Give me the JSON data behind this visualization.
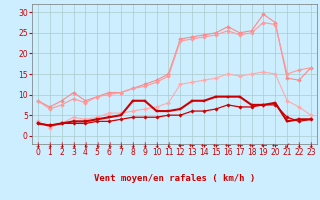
{
  "x": [
    0,
    1,
    2,
    3,
    4,
    5,
    6,
    7,
    8,
    9,
    10,
    11,
    12,
    13,
    14,
    15,
    16,
    17,
    18,
    19,
    20,
    21,
    22,
    23
  ],
  "series": [
    {
      "color": "#ff8888",
      "linewidth": 0.8,
      "marker": "D",
      "markersize": 2.0,
      "values": [
        8.5,
        7.0,
        8.5,
        10.5,
        8.5,
        9.5,
        10.5,
        10.5,
        11.5,
        12.5,
        13.5,
        15.0,
        23.5,
        24.0,
        24.5,
        25.0,
        26.5,
        25.0,
        25.5,
        29.5,
        27.5,
        14.0,
        13.5,
        16.5
      ]
    },
    {
      "color": "#ff9999",
      "linewidth": 0.8,
      "marker": "D",
      "markersize": 2.0,
      "values": [
        8.5,
        6.5,
        7.5,
        9.0,
        8.0,
        9.5,
        10.0,
        10.5,
        11.5,
        12.0,
        13.0,
        14.5,
        23.0,
        23.5,
        24.0,
        24.5,
        25.5,
        24.5,
        25.0,
        27.5,
        27.0,
        15.0,
        16.0,
        16.5
      ]
    },
    {
      "color": "#ffaaaa",
      "linewidth": 0.8,
      "marker": "D",
      "markersize": 2.0,
      "values": [
        3.5,
        2.0,
        3.0,
        4.5,
        4.0,
        4.5,
        5.5,
        5.5,
        6.0,
        6.5,
        7.0,
        8.0,
        12.5,
        13.0,
        13.5,
        14.0,
        15.0,
        14.5,
        15.0,
        15.5,
        15.0,
        8.5,
        7.0,
        5.0
      ]
    },
    {
      "color": "#cc0000",
      "linewidth": 1.5,
      "marker": "s",
      "markersize": 2.0,
      "values": [
        3.0,
        2.5,
        3.0,
        3.5,
        3.5,
        4.0,
        4.5,
        5.0,
        8.5,
        8.5,
        6.0,
        6.0,
        6.5,
        8.5,
        8.5,
        9.5,
        9.5,
        9.5,
        7.5,
        7.5,
        8.0,
        3.5,
        4.0,
        4.0
      ]
    },
    {
      "color": "#cc0000",
      "linewidth": 0.9,
      "marker": "D",
      "markersize": 1.8,
      "values": [
        3.0,
        2.5,
        3.0,
        3.0,
        3.0,
        3.5,
        3.5,
        4.0,
        4.5,
        4.5,
        4.5,
        5.0,
        5.0,
        6.0,
        6.0,
        6.5,
        7.5,
        7.0,
        7.0,
        7.5,
        7.5,
        4.5,
        3.5,
        4.0
      ]
    }
  ],
  "background_color": "#cceeff",
  "grid_color": "#aacccc",
  "xlabel": "Vent moyen/en rafales ( km/h )",
  "xlabel_color": "#cc0000",
  "xlabel_fontsize": 6.5,
  "yticks": [
    0,
    5,
    10,
    15,
    20,
    25,
    30
  ],
  "ylim": [
    -2,
    32
  ],
  "xlim": [
    -0.5,
    23.5
  ],
  "tick_color": "#cc0000",
  "tick_fontsize": 5.5,
  "arrow_color": "#cc0000",
  "arrow_fontsize": 5.5
}
